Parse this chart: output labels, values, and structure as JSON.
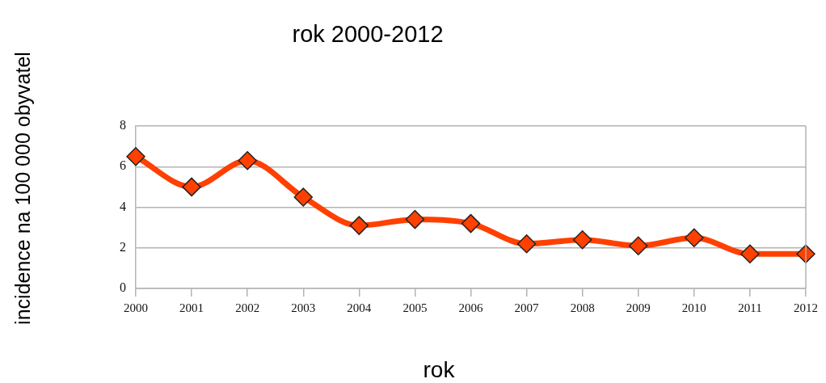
{
  "chart_data": {
    "type": "line",
    "title": "rok 2000-2012",
    "xlabel": "rok",
    "ylabel": "incidence na 100 000 obyvatel",
    "categories": [
      "2000",
      "2001",
      "2002",
      "2003",
      "2004",
      "2005",
      "2006",
      "2007",
      "2008",
      "2009",
      "2010",
      "2011",
      "2012"
    ],
    "series": [
      {
        "color": "#ff4000",
        "values": [
          6.5,
          5.0,
          6.3,
          4.5,
          3.1,
          3.4,
          3.2,
          2.2,
          2.4,
          2.1,
          2.5,
          1.7,
          1.7
        ]
      }
    ],
    "ylim": [
      0,
      8
    ],
    "yticks": [
      0,
      2,
      4,
      6,
      8
    ],
    "grid": "y",
    "legend": false,
    "marker": "diamond",
    "line_style": "solid"
  }
}
